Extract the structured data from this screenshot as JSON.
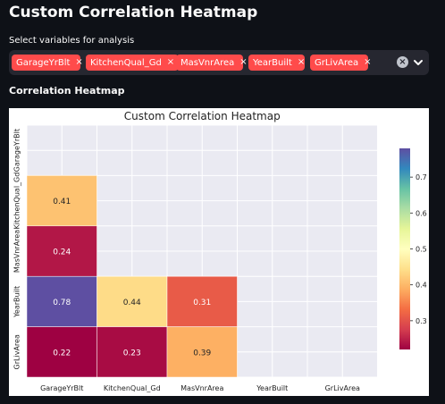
{
  "page": {
    "title": "Custom Correlation Heatmap",
    "select_label": "Select variables for analysis",
    "section_heading": "Correlation Heatmap"
  },
  "multiselect": {
    "selected": [
      "GarageYrBlt",
      "KitchenQual_Gd",
      "MasVnrArea",
      "YearBuilt",
      "GrLivArea"
    ],
    "remove_glyph": "×",
    "clear_glyph": "×",
    "accent_color": "#ff4b4b"
  },
  "icons": {
    "tag_remove": "close-icon",
    "clear_all": "clear-circle-icon",
    "dropdown": "chevron-down-icon"
  },
  "chart_data": {
    "type": "heatmap",
    "title": "Custom Correlation Heatmap",
    "variables": [
      "GarageYrBlt",
      "KitchenQual_Gd",
      "MasVnrArea",
      "YearBuilt",
      "GrLivArea"
    ],
    "mask": "upper-triangle-including-diagonal",
    "cells": [
      {
        "row": "KitchenQual_Gd",
        "col": "GarageYrBlt",
        "value": 0.41
      },
      {
        "row": "MasVnrArea",
        "col": "GarageYrBlt",
        "value": 0.24
      },
      {
        "row": "YearBuilt",
        "col": "GarageYrBlt",
        "value": 0.78
      },
      {
        "row": "YearBuilt",
        "col": "KitchenQual_Gd",
        "value": 0.44
      },
      {
        "row": "YearBuilt",
        "col": "MasVnrArea",
        "value": 0.31
      },
      {
        "row": "GrLivArea",
        "col": "GarageYrBlt",
        "value": 0.22
      },
      {
        "row": "GrLivArea",
        "col": "KitchenQual_Gd",
        "value": 0.23
      },
      {
        "row": "GrLivArea",
        "col": "MasVnrArea",
        "value": 0.39
      }
    ],
    "colorbar": {
      "colormap": "Spectral",
      "vmin": 0.22,
      "vmax": 0.78,
      "ticks": [
        0.3,
        0.4,
        0.5,
        0.6,
        0.7
      ]
    },
    "background_color": "#eaeaf2",
    "grid": true
  }
}
